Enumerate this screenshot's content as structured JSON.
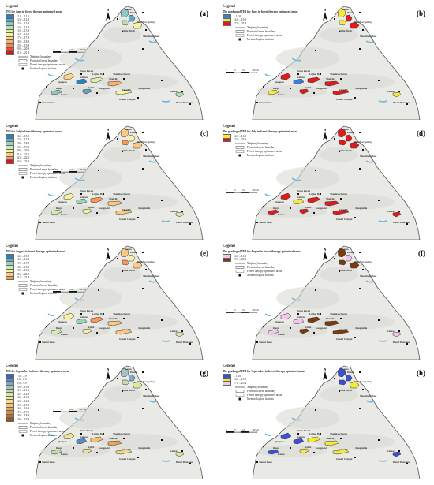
{
  "common": {
    "legend_heading": "Legend",
    "north_letter": "N",
    "symbols": {
      "boundary": "Xinjiang boundary",
      "protected": "Protected areas boundary",
      "forest": "Forest therapy optimized areas",
      "station": "Meteorological stations"
    },
    "scale_ticks": [
      "0",
      "50",
      "100",
      "200 km"
    ],
    "places": {
      "kanas": "Kanas",
      "hemu": "Hemu",
      "white_birch": "White Birch",
      "altai": "Altai Hot Spring",
      "shenzhong": "Shenzhongshan",
      "wusu": "Wusu Forest",
      "lujiao": "Lujiao Bay",
      "tianshan": "Tianshan Forest",
      "tianchi": "Tianchi",
      "qiaopan": "Qiaopan",
      "kuitun": "Kuitun",
      "nalati": "Nalati",
      "kuqa": "Kuqa",
      "gongnai": "Gongnaisi",
      "cherish": "Cherish",
      "jiangbulak": "Jiangbulak",
      "kanas2": "Kanas",
      "kalasu": "Kalasu",
      "tomur": "Tomur Peak",
      "hami": "Hami Tianshan",
      "grand_canyon": "Grand Canyon"
    }
  },
  "panels": [
    {
      "label": "(a)",
      "legend_title": "THI for June in forest therapy optimized areas",
      "classes": [
        {
          "range": "11.0 – 11.9",
          "color": "#2b83ba"
        },
        {
          "range": "12.0 – 12.9",
          "color": "#5ba7c4"
        },
        {
          "range": "13.0 – 13.9",
          "color": "#8cc7c2"
        },
        {
          "range": "14.0 – 14.9",
          "color": "#b8dfb4"
        },
        {
          "range": "15.0 – 15.9",
          "color": "#ddf0a8"
        },
        {
          "range": "16.0 – 16.9",
          "color": "#f6f3a0"
        },
        {
          "range": "17.0 – 17.9",
          "color": "#fdd68a"
        },
        {
          "range": "18.0 – 18.9",
          "color": "#fcae6a"
        },
        {
          "range": "19.0 – 19.9",
          "color": "#f5834f"
        },
        {
          "range": "20.0 – 20.9",
          "color": "#e35437"
        },
        {
          "range": "21.0 – 21.9",
          "color": "#d7191c"
        }
      ],
      "region_colors": [
        "#8cc7c2",
        "#5ba7c4",
        "#b8dfb4",
        "#f6f3a0",
        "#fdd68a",
        "#2b83ba",
        "#ddf0a8",
        "#fcae6a",
        "#8cc7c2",
        "#5ba7c4",
        "#f6f3a0",
        "#b8dfb4"
      ]
    },
    {
      "label": "(b)",
      "legend_title": "The grading of THI for June in forest therapy optimized areas",
      "classes": [
        {
          "range": "< 14.0",
          "color": "#3a7fd5"
        },
        {
          "range": "14.0 – 16.9",
          "color": "#f5e93a"
        },
        {
          "range": "17.0 – 25.4",
          "color": "#e31a1c"
        }
      ],
      "region_colors": [
        "#f5e93a",
        "#e31a1c",
        "#f5e93a",
        "#e31a1c",
        "#e31a1c",
        "#3a7fd5",
        "#e31a1c",
        "#e31a1c",
        "#f5e93a",
        "#e31a1c",
        "#e31a1c",
        "#f5e93a"
      ]
    },
    {
      "label": "(c)",
      "legend_title": "THI for July in forest therapy optimized areas",
      "classes": [
        {
          "range": "14.0 – 15.9",
          "color": "#2b83ba"
        },
        {
          "range": "17.0 – 17.9",
          "color": "#64adc2"
        },
        {
          "range": "18.0 – 18.9",
          "color": "#9dd3be"
        },
        {
          "range": "19.0 – 19.9",
          "color": "#d2ecb0"
        },
        {
          "range": "20.0 – 20.9",
          "color": "#f6f3a0"
        },
        {
          "range": "21.0 – 21.9",
          "color": "#fdc980"
        },
        {
          "range": "22.0 – 22.9",
          "color": "#f99858"
        },
        {
          "range": "23.0 – 23.9",
          "color": "#d7191c"
        }
      ],
      "region_colors": [
        "#fdc980",
        "#f6f3a0",
        "#f99858",
        "#fdc980",
        "#f6f3a0",
        "#9dd3be",
        "#f99858",
        "#fdc980",
        "#d2ecb0",
        "#f6f3a0",
        "#fdc980",
        "#d2ecb0"
      ]
    },
    {
      "label": "(d)",
      "legend_title": "The grading of THI for July in forest therapy optimized areas",
      "classes": [
        {
          "range": "14.0 – 16.9",
          "color": "#f5e93a"
        },
        {
          "range": "17.0 – 25.4",
          "color": "#e31a1c"
        }
      ],
      "region_colors": [
        "#e31a1c",
        "#e31a1c",
        "#e31a1c",
        "#e31a1c",
        "#e31a1c",
        "#f5e93a",
        "#e31a1c",
        "#e31a1c",
        "#e31a1c",
        "#e31a1c",
        "#e31a1c",
        "#e31a1c"
      ]
    },
    {
      "label": "(e)",
      "legend_title": "THI for August in forest therapy optimized areas",
      "classes": [
        {
          "range": "14.0 – 15.9",
          "color": "#2b83ba"
        },
        {
          "range": "16.0 – 16.9",
          "color": "#64adc2"
        },
        {
          "range": "17.0 – 17.9",
          "color": "#9dd3be"
        },
        {
          "range": "18.0 – 18.9",
          "color": "#d2ecb0"
        },
        {
          "range": "19.0 – 19.9",
          "color": "#f6f3a0"
        },
        {
          "range": "20.0 – 20.9",
          "color": "#fdc980"
        },
        {
          "range": "21.0 – 21.9",
          "color": "#f99858"
        }
      ],
      "region_colors": [
        "#fdc980",
        "#f6f3a0",
        "#f99858",
        "#fdc980",
        "#f6f3a0",
        "#9dd3be",
        "#f99858",
        "#fdc980",
        "#d2ecb0",
        "#f6f3a0",
        "#fdc980",
        "#d2ecb0"
      ]
    },
    {
      "label": "(f)",
      "legend_title": "The grading of THI for August in forest therapy optimized areas",
      "classes": [
        {
          "range": "14.0 – 16.9",
          "color": "#f4c6ef"
        },
        {
          "range": "17.0 – 25.4",
          "color": "#7a3b12"
        }
      ],
      "region_colors": [
        "#7a3b12",
        "#f4c6ef",
        "#7a3b12",
        "#7a3b12",
        "#f4c6ef",
        "#f4c6ef",
        "#7a3b12",
        "#7a3b12",
        "#f4c6ef",
        "#7a3b12",
        "#7a3b12",
        "#f4c6ef"
      ]
    },
    {
      "label": "(g)",
      "legend_title": "THI for September in forest therapy optimized areas",
      "classes": [
        {
          "range": "7.0 – 7.9",
          "color": "#3a66b5"
        },
        {
          "range": "8.0 – 8.9",
          "color": "#5b8ac4"
        },
        {
          "range": "9.0 – 9.9",
          "color": "#7ea9c8"
        },
        {
          "range": "10.0 – 10.9",
          "color": "#a2c4c2"
        },
        {
          "range": "11.0 – 11.9",
          "color": "#c3d9b0"
        },
        {
          "range": "12.0 – 12.9",
          "color": "#dde6a0"
        },
        {
          "range": "13.0 – 13.9",
          "color": "#ece596"
        },
        {
          "range": "14.0 – 14.9",
          "color": "#f4d98a"
        },
        {
          "range": "15.0 – 15.9",
          "color": "#f0c272"
        },
        {
          "range": "16.0 – 16.9",
          "color": "#e4a85c"
        },
        {
          "range": "17.0 – 17.9",
          "color": "#d08c48"
        },
        {
          "range": "18.0 – 18.9",
          "color": "#b86f34"
        },
        {
          "range": "19.0 – 19.9",
          "color": "#9a5222"
        }
      ],
      "region_colors": [
        "#a2c4c2",
        "#7ea9c8",
        "#c3d9b0",
        "#dde6a0",
        "#ece596",
        "#5b8ac4",
        "#f0c272",
        "#e4a85c",
        "#c3d9b0",
        "#ece596",
        "#f4d98a",
        "#dde6a0"
      ]
    },
    {
      "label": "(h)",
      "legend_title": "The grading of THI for September in forest therapy optimized areas",
      "classes": [
        {
          "range": "< 14.0",
          "color": "#3b4fd8"
        },
        {
          "range": "14.0 – 16.9",
          "color": "#f5e93a"
        },
        {
          "range": "17.0 – 25.4",
          "color": "#f4c6ef"
        }
      ],
      "region_colors": [
        "#3b4fd8",
        "#3b4fd8",
        "#3b4fd8",
        "#f5e93a",
        "#3b4fd8",
        "#3b4fd8",
        "#f5e93a",
        "#f5e93a",
        "#3b4fd8",
        "#f5e93a",
        "#f5e93a",
        "#3b4fd8"
      ]
    }
  ]
}
